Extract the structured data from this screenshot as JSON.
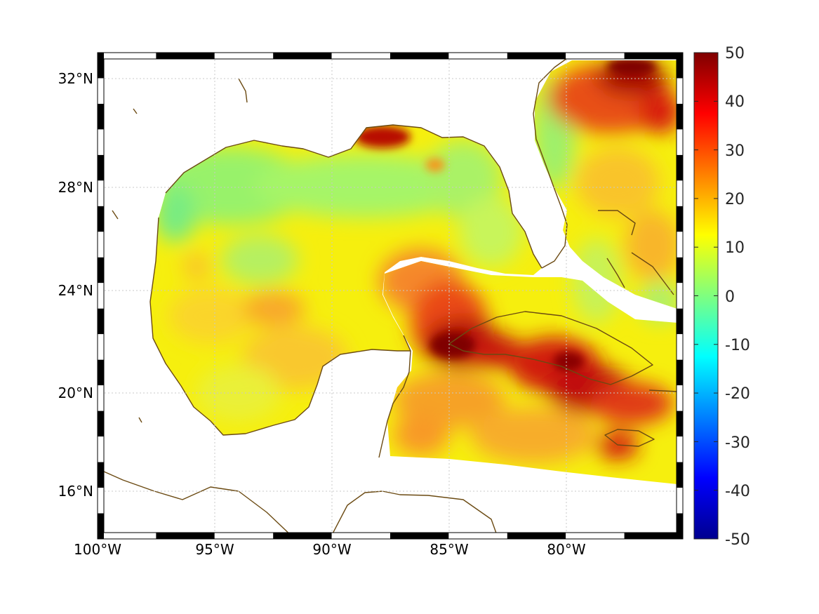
{
  "map": {
    "lon_range": [
      -100,
      -75
    ],
    "lat_range": [
      14.2,
      33
    ],
    "lat_ticks": [
      "32°N",
      "28°N",
      "24°N",
      "20°N",
      "16°N"
    ],
    "lon_ticks": [
      "100°W",
      "95°W",
      "90°W",
      "85°W",
      "80°W"
    ],
    "grid": true,
    "coastline_color": "#6b4a12",
    "land_color": "#ffffff"
  },
  "colorbar": {
    "colormap": "jet",
    "min": -50,
    "max": 50,
    "ticks": [
      "50",
      "40",
      "30",
      "20",
      "10",
      "0",
      "-10",
      "-20",
      "-30",
      "-40",
      "-50"
    ]
  }
}
